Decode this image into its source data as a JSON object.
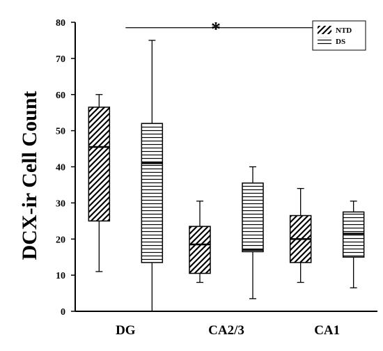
{
  "chart_data": {
    "type": "box",
    "ylabel": "DCX-ir Cell Count",
    "ylim": [
      0,
      80
    ],
    "yticks": [
      0,
      10,
      20,
      30,
      40,
      50,
      60,
      70,
      80
    ],
    "categories": [
      "DG",
      "CA2/3",
      "CA1"
    ],
    "series": [
      {
        "name": "NTD",
        "pattern": "diagonal",
        "boxes": [
          {
            "category": "DG",
            "min": 11,
            "q1": 25,
            "median": 45.5,
            "q3": 56.5,
            "max": 60
          },
          {
            "category": "CA2/3",
            "min": 8,
            "q1": 10.5,
            "median": 18.5,
            "q3": 23.5,
            "max": 30.5
          },
          {
            "category": "CA1",
            "min": 8,
            "q1": 13.5,
            "median": 20,
            "q3": 26.5,
            "max": 34
          }
        ]
      },
      {
        "name": "DS",
        "pattern": "horizontal",
        "boxes": [
          {
            "category": "DG",
            "min": 0,
            "q1": 13.5,
            "median": 41,
            "q3": 52,
            "max": 75
          },
          {
            "category": "CA2/3",
            "min": 3.5,
            "q1": 16.5,
            "median": 17,
            "q3": 35.5,
            "max": 40
          },
          {
            "category": "CA1",
            "min": 6.5,
            "q1": 15,
            "median": 21.5,
            "q3": 27.5,
            "max": 30.5
          }
        ]
      }
    ],
    "annotations": [
      {
        "text": "*",
        "type": "significance-bar",
        "from": "DG",
        "to": "CA1"
      }
    ],
    "legend": {
      "position": "top-right",
      "entries": [
        "NTD",
        "DS"
      ]
    },
    "grid": false
  }
}
